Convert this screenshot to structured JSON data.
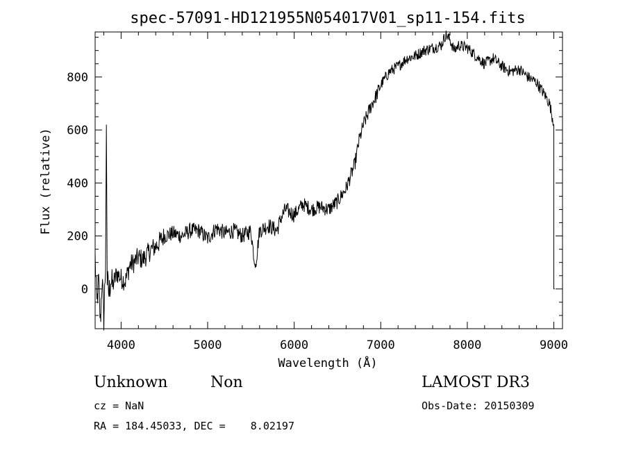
{
  "chart_data": {
    "type": "line",
    "title": "spec-57091-HD121955N054017V01_sp11-154.fits",
    "xlabel": "Wavelength (Å)",
    "ylabel": "Flux (relative)",
    "xlim": [
      3700,
      9100
    ],
    "ylim": [
      -150,
      970
    ],
    "x_ticks": [
      4000,
      5000,
      6000,
      7000,
      8000,
      9000
    ],
    "y_ticks": [
      0,
      200,
      400,
      600,
      800
    ],
    "grid": false,
    "series": [
      {
        "x": [
          3700,
          3720,
          3740,
          3760,
          3780,
          3800,
          3820,
          3830,
          3840,
          3860,
          3880,
          3900,
          3950,
          4000,
          4050,
          4100,
          4150,
          4200,
          4250,
          4300,
          4350,
          4400,
          4450,
          4500,
          4600,
          4700,
          4800,
          4900,
          5000,
          5100,
          5200,
          5300,
          5400,
          5500,
          5550,
          5600,
          5700,
          5800,
          5850,
          5900,
          6000,
          6100,
          6200,
          6300,
          6400,
          6500,
          6600,
          6700,
          6750,
          6800,
          6850,
          6900,
          6950,
          7000,
          7100,
          7200,
          7300,
          7400,
          7500,
          7600,
          7700,
          7750,
          7800,
          7850,
          7900,
          8000,
          8100,
          8200,
          8300,
          8400,
          8500,
          8600,
          8700,
          8800,
          8900,
          8950,
          9000,
          9010
        ],
        "y": [
          120,
          -60,
          30,
          -130,
          40,
          -110,
          90,
          620,
          30,
          -20,
          40,
          10,
          60,
          40,
          30,
          90,
          100,
          120,
          110,
          130,
          150,
          160,
          180,
          200,
          210,
          200,
          220,
          220,
          190,
          230,
          210,
          220,
          200,
          220,
          80,
          220,
          240,
          220,
          270,
          300,
          280,
          320,
          300,
          310,
          300,
          330,
          380,
          470,
          560,
          620,
          660,
          700,
          730,
          770,
          820,
          840,
          870,
          880,
          900,
          910,
          920,
          960,
          940,
          900,
          920,
          910,
          880,
          850,
          870,
          840,
          820,
          830,
          800,
          780,
          730,
          700,
          620,
          0
        ]
      }
    ]
  },
  "info": {
    "object_name": "Unknown",
    "class": "Non",
    "survey": "LAMOST DR3",
    "cz": "cz = NaN",
    "obs_date": "Obs-Date: 20150309",
    "radec": "RA = 184.45033, DEC =    8.02197"
  }
}
